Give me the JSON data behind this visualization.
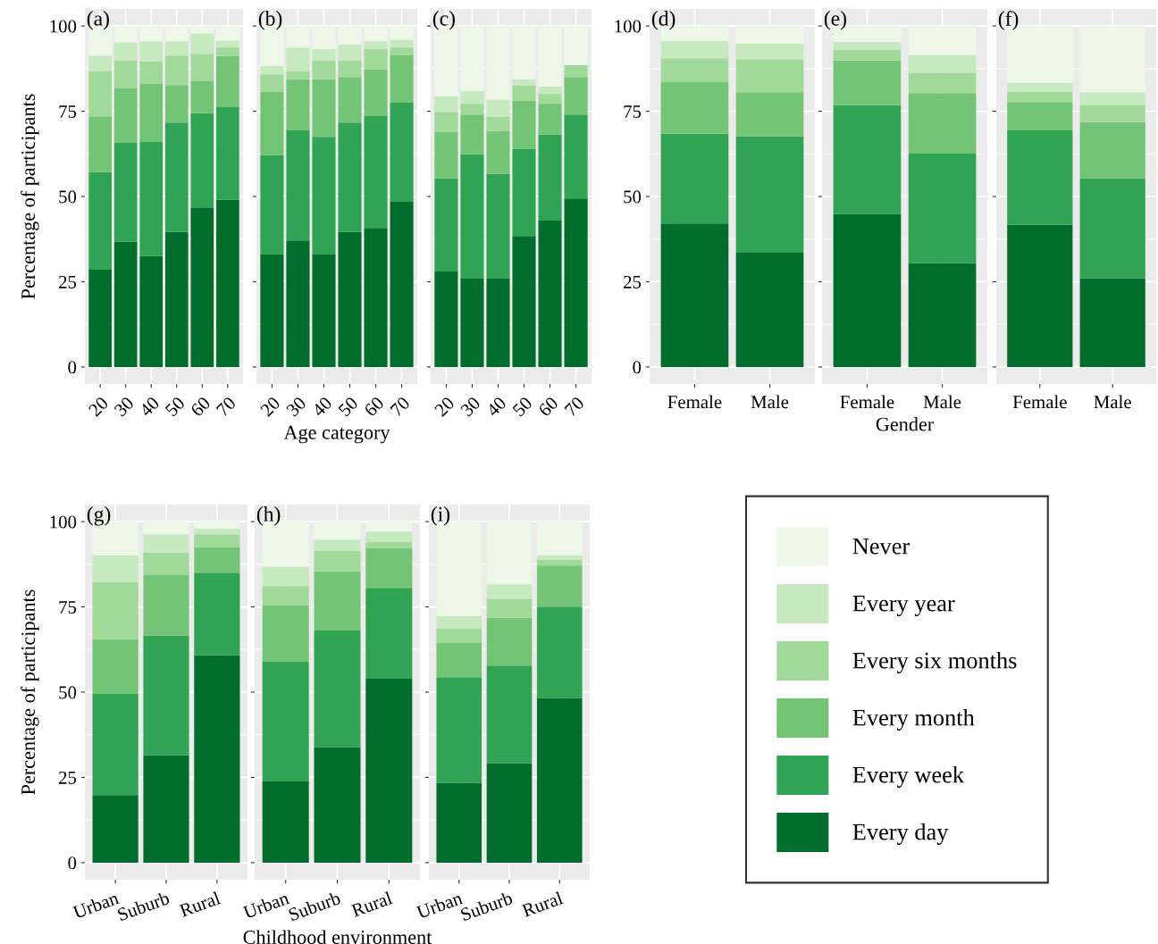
{
  "chart_data": [
    {
      "type": "bar",
      "title": "(a)",
      "ylabel": "Percentage of participants",
      "categories": [
        "20",
        "30",
        "40",
        "50",
        "60",
        "70"
      ],
      "stacked": true,
      "ylim": [
        -5,
        105
      ],
      "yticks": [
        0,
        25,
        50,
        75,
        100
      ],
      "grid": true,
      "legend": "right",
      "series": [
        {
          "name": "Every day",
          "color": "#006d2c",
          "values": [
            28.5,
            36.7,
            32.5,
            39.6,
            46.8,
            49.0
          ]
        },
        {
          "name": "Every week",
          "color": "#31a354",
          "values": [
            28.7,
            29.0,
            33.5,
            32.1,
            27.6,
            27.2
          ]
        },
        {
          "name": "Every month",
          "color": "#74c476",
          "values": [
            16.3,
            16.1,
            17.1,
            11.0,
            9.5,
            15.0
          ]
        },
        {
          "name": "Every six months",
          "color": "#a1d99b",
          "values": [
            13.3,
            8.1,
            6.5,
            8.6,
            7.9,
            2.5
          ]
        },
        {
          "name": "Every year",
          "color": "#c7e9c0",
          "values": [
            4.5,
            5.3,
            5.9,
            4.2,
            6.0,
            2.0
          ]
        },
        {
          "name": "Never",
          "color": "#edf8e9",
          "values": [
            8.7,
            4.8,
            4.5,
            4.5,
            2.2,
            4.3
          ]
        }
      ]
    },
    {
      "type": "bar",
      "title": "(b)",
      "xlabel": "Age category",
      "categories": [
        "20",
        "30",
        "40",
        "50",
        "60",
        "70"
      ],
      "stacked": true,
      "ylim": [
        -5,
        105
      ],
      "yticks": [
        0,
        25,
        50,
        75,
        100
      ],
      "grid": true,
      "tick_labels": "x",
      "series": [
        {
          "color": "#006d2c",
          "values": [
            33.0,
            37.1,
            33.0,
            39.6,
            40.8,
            48.4
          ]
        },
        {
          "color": "#31a354",
          "values": [
            29.1,
            32.3,
            34.5,
            32.1,
            32.8,
            29.1
          ]
        },
        {
          "color": "#74c476",
          "values": [
            18.7,
            15.0,
            16.9,
            13.3,
            13.7,
            14.0
          ]
        },
        {
          "color": "#a1d99b",
          "values": [
            5.0,
            2.4,
            5.5,
            4.9,
            5.9,
            2.2
          ]
        },
        {
          "color": "#c7e9c0",
          "values": [
            2.5,
            6.9,
            3.3,
            4.7,
            2.3,
            2.3
          ]
        },
        {
          "color": "#edf8e9",
          "values": [
            11.7,
            6.3,
            6.8,
            5.4,
            4.5,
            4.0
          ]
        }
      ]
    },
    {
      "type": "bar",
      "title": "(c)",
      "categories": [
        "20",
        "30",
        "40",
        "50",
        "60",
        "70"
      ],
      "stacked": true,
      "ylim": [
        -5,
        105
      ],
      "yticks": [
        0,
        25,
        50,
        75,
        100
      ],
      "grid": true,
      "tick_labels": "x",
      "series": [
        {
          "color": "#006d2c",
          "values": [
            28.0,
            25.9,
            25.9,
            38.4,
            42.9,
            49.4
          ]
        },
        {
          "color": "#31a354",
          "values": [
            27.3,
            36.5,
            30.8,
            25.6,
            25.3,
            24.6
          ]
        },
        {
          "color": "#74c476",
          "values": [
            13.7,
            11.6,
            12.5,
            14.0,
            9.0,
            11.0
          ]
        },
        {
          "color": "#a1d99b",
          "values": [
            5.8,
            3.2,
            4.2,
            4.6,
            2.9,
            3.5
          ]
        },
        {
          "color": "#c7e9c0",
          "values": [
            4.6,
            3.7,
            5.0,
            1.8,
            2.1,
            0
          ]
        },
        {
          "color": "#edf8e9",
          "values": [
            20.6,
            19.1,
            21.6,
            15.6,
            17.8,
            11.5
          ]
        }
      ]
    },
    {
      "type": "bar",
      "title": "(d)",
      "categories": [
        "Female",
        "Male"
      ],
      "stacked": true,
      "ylim": [
        -5,
        105
      ],
      "yticks": [
        0,
        25,
        50,
        75,
        100
      ],
      "grid": true,
      "series": [
        {
          "color": "#006d2c",
          "values": [
            42.1,
            33.7
          ]
        },
        {
          "color": "#31a354",
          "values": [
            26.3,
            33.9
          ]
        },
        {
          "color": "#74c476",
          "values": [
            15.1,
            13.0
          ]
        },
        {
          "color": "#a1d99b",
          "values": [
            7.0,
            9.7
          ]
        },
        {
          "color": "#c7e9c0",
          "values": [
            5.1,
            4.5
          ]
        },
        {
          "color": "#edf8e9",
          "values": [
            4.4,
            5.2
          ]
        }
      ]
    },
    {
      "type": "bar",
      "title": "(e)",
      "xlabel": "Gender",
      "categories": [
        "Female",
        "Male"
      ],
      "stacked": true,
      "ylim": [
        -5,
        105
      ],
      "yticks": [
        0,
        25,
        50,
        75,
        100
      ],
      "grid": true,
      "tick_labels": "x",
      "series": [
        {
          "color": "#006d2c",
          "values": [
            44.9,
            30.4
          ]
        },
        {
          "color": "#31a354",
          "values": [
            31.9,
            32.2
          ]
        },
        {
          "color": "#74c476",
          "values": [
            13.1,
            17.7
          ]
        },
        {
          "color": "#a1d99b",
          "values": [
            3.1,
            6.0
          ]
        },
        {
          "color": "#c7e9c0",
          "values": [
            2.3,
            5.2
          ]
        },
        {
          "color": "#edf8e9",
          "values": [
            4.7,
            8.5
          ]
        }
      ]
    },
    {
      "type": "bar",
      "title": "(f)",
      "categories": [
        "Female",
        "Male"
      ],
      "stacked": true,
      "ylim": [
        -5,
        105
      ],
      "yticks": [
        0,
        25,
        50,
        75,
        100
      ],
      "grid": true,
      "tick_labels": "x",
      "series": [
        {
          "color": "#006d2c",
          "values": [
            41.7,
            26.0
          ]
        },
        {
          "color": "#31a354",
          "values": [
            27.7,
            29.4
          ]
        },
        {
          "color": "#74c476",
          "values": [
            8.3,
            16.4
          ]
        },
        {
          "color": "#a1d99b",
          "values": [
            3.1,
            4.9
          ]
        },
        {
          "color": "#c7e9c0",
          "values": [
            2.5,
            3.9
          ]
        },
        {
          "color": "#edf8e9",
          "values": [
            16.7,
            19.4
          ]
        }
      ]
    },
    {
      "type": "bar",
      "title": "(g)",
      "ylabel": "Percentage of participants",
      "categories": [
        "Urban",
        "Suburb",
        "Rural"
      ],
      "stacked": true,
      "ylim": [
        -5,
        105
      ],
      "yticks": [
        0,
        25,
        50,
        75,
        100
      ],
      "grid": true,
      "series": [
        {
          "color": "#006d2c",
          "values": [
            19.8,
            31.5,
            60.8
          ]
        },
        {
          "color": "#31a354",
          "values": [
            29.7,
            35.1,
            24.2
          ]
        },
        {
          "color": "#74c476",
          "values": [
            16.0,
            17.7,
            7.4
          ]
        },
        {
          "color": "#a1d99b",
          "values": [
            16.7,
            6.6,
            3.9
          ]
        },
        {
          "color": "#c7e9c0",
          "values": [
            7.9,
            5.4,
            1.6
          ]
        },
        {
          "color": "#edf8e9",
          "values": [
            9.9,
            3.7,
            2.1
          ]
        }
      ]
    },
    {
      "type": "bar",
      "title": "(h)",
      "xlabel": "Childhood environment",
      "categories": [
        "Urban",
        "Suburb",
        "Rural"
      ],
      "stacked": true,
      "ylim": [
        -5,
        105
      ],
      "yticks": [
        0,
        25,
        50,
        75,
        100
      ],
      "grid": true,
      "tick_labels": "x",
      "series": [
        {
          "color": "#006d2c",
          "values": [
            23.8,
            33.8,
            53.9
          ]
        },
        {
          "color": "#31a354",
          "values": [
            35.1,
            34.3,
            26.7
          ]
        },
        {
          "color": "#74c476",
          "values": [
            16.6,
            17.3,
            11.6
          ]
        },
        {
          "color": "#a1d99b",
          "values": [
            5.6,
            6.0,
            1.8
          ]
        },
        {
          "color": "#c7e9c0",
          "values": [
            5.7,
            3.3,
            3.1
          ]
        },
        {
          "color": "#edf8e9",
          "values": [
            13.2,
            5.3,
            2.9
          ]
        }
      ]
    },
    {
      "type": "bar",
      "title": "(i)",
      "categories": [
        "Urban",
        "Suburb",
        "Rural"
      ],
      "stacked": true,
      "ylim": [
        -5,
        105
      ],
      "yticks": [
        0,
        25,
        50,
        75,
        100
      ],
      "grid": true,
      "tick_labels": "x",
      "series": [
        {
          "color": "#006d2c",
          "values": [
            23.4,
            29.2,
            48.3
          ]
        },
        {
          "color": "#31a354",
          "values": [
            31.0,
            28.6,
            26.8
          ]
        },
        {
          "color": "#74c476",
          "values": [
            10.0,
            14.0,
            12.0
          ]
        },
        {
          "color": "#a1d99b",
          "values": [
            4.2,
            5.6,
            1.8
          ]
        },
        {
          "color": "#c7e9c0",
          "values": [
            3.7,
            4.2,
            1.2
          ]
        },
        {
          "color": "#edf8e9",
          "values": [
            27.7,
            18.4,
            9.9
          ]
        }
      ]
    }
  ]
}
